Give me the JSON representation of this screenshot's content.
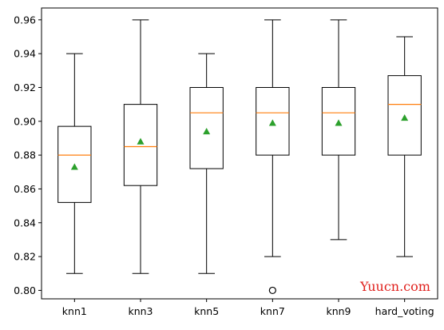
{
  "chart_data": {
    "type": "box",
    "title": "",
    "xlabel": "",
    "ylabel": "",
    "ylim": [
      0.795,
      0.967
    ],
    "yticks": [
      "0.80",
      "0.82",
      "0.84",
      "0.86",
      "0.88",
      "0.90",
      "0.92",
      "0.94",
      "0.96"
    ],
    "grid": false,
    "show_means": true,
    "categories": [
      "knn1",
      "knn3",
      "knn5",
      "knn7",
      "knn9",
      "hard_voting"
    ],
    "boxes": [
      {
        "label": "knn1",
        "whisker_low": 0.81,
        "q1": 0.852,
        "median": 0.88,
        "q3": 0.897,
        "whisker_high": 0.94,
        "mean": 0.873,
        "outliers": []
      },
      {
        "label": "knn3",
        "whisker_low": 0.81,
        "q1": 0.862,
        "median": 0.885,
        "q3": 0.91,
        "whisker_high": 0.96,
        "mean": 0.888,
        "outliers": []
      },
      {
        "label": "knn5",
        "whisker_low": 0.81,
        "q1": 0.872,
        "median": 0.905,
        "q3": 0.92,
        "whisker_high": 0.94,
        "mean": 0.894,
        "outliers": []
      },
      {
        "label": "knn7",
        "whisker_low": 0.82,
        "q1": 0.88,
        "median": 0.905,
        "q3": 0.92,
        "whisker_high": 0.96,
        "mean": 0.899,
        "outliers": [
          0.8
        ]
      },
      {
        "label": "knn9",
        "whisker_low": 0.83,
        "q1": 0.88,
        "median": 0.905,
        "q3": 0.92,
        "whisker_high": 0.96,
        "mean": 0.899,
        "outliers": []
      },
      {
        "label": "hard_voting",
        "whisker_low": 0.82,
        "q1": 0.88,
        "median": 0.91,
        "q3": 0.927,
        "whisker_high": 0.95,
        "mean": 0.902,
        "outliers": []
      }
    ],
    "colors": {
      "box": "#000000",
      "median": "#ff7f0e",
      "mean": "#2ca02c",
      "outlier": "#000000"
    }
  },
  "watermark": {
    "text": "Yuucn.com",
    "color": "#e0201c"
  }
}
